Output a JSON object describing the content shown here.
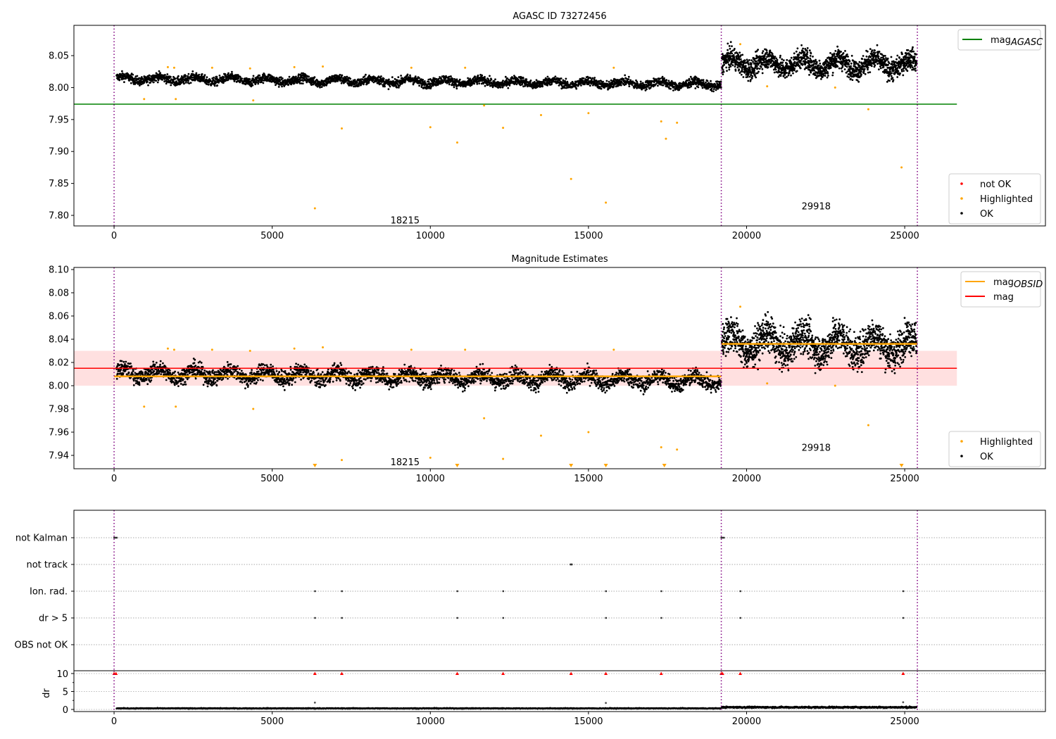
{
  "chart_data": [
    {
      "type": "scatter",
      "title": "AGASC ID 73272456",
      "xlim": [
        -1270,
        29450
      ],
      "ylim": [
        7.7835,
        8.0974
      ],
      "xticks": [
        0,
        5000,
        10000,
        15000,
        20000,
        25000
      ],
      "yticks": [
        7.8,
        7.85,
        7.9,
        7.95,
        8.0,
        8.05
      ],
      "ok_segments": [
        {
          "x": [
            80,
            19200
          ],
          "mean": [
            8.014,
            8.005
          ],
          "spread": 0.011
        },
        {
          "x": [
            19220,
            25380
          ],
          "mean": [
            8.038,
            8.036
          ],
          "spread": 0.026
        }
      ],
      "highlighted": [
        [
          1700,
          8.032
        ],
        [
          1900,
          8.031
        ],
        [
          3100,
          8.031
        ],
        [
          4300,
          8.03
        ],
        [
          5700,
          8.032
        ],
        [
          6600,
          8.033
        ],
        [
          9400,
          8.031
        ],
        [
          11100,
          8.031
        ],
        [
          15800,
          8.031
        ],
        [
          19800,
          8.068
        ],
        [
          950,
          7.982
        ],
        [
          1950,
          7.982
        ],
        [
          4400,
          7.98
        ],
        [
          6350,
          7.811
        ],
        [
          7200,
          7.936
        ],
        [
          10000,
          7.938
        ],
        [
          10850,
          7.914
        ],
        [
          11700,
          7.972
        ],
        [
          12300,
          7.937
        ],
        [
          13500,
          7.957
        ],
        [
          14450,
          7.857
        ],
        [
          15000,
          7.96
        ],
        [
          15550,
          7.82
        ],
        [
          17300,
          7.947
        ],
        [
          17450,
          7.92
        ],
        [
          17800,
          7.945
        ],
        [
          23850,
          7.966
        ],
        [
          24900,
          7.875
        ],
        [
          22800,
          8.0
        ],
        [
          20650,
          8.002
        ]
      ],
      "not_ok": [],
      "mag_agasc": {
        "value": 7.974,
        "x": [
          -1270,
          26650
        ],
        "color": "#008000"
      },
      "obsid_lines": [
        0,
        19200,
        25400
      ],
      "annotations": [
        {
          "text": "18215",
          "x": 9200,
          "y": 7.793
        },
        {
          "text": "29918",
          "x": 22200,
          "y": 7.815
        }
      ],
      "legend_top": [
        {
          "label": "mag",
          "sub": "AGASC",
          "color": "#008000"
        }
      ],
      "legend_bottom": [
        {
          "label": "not OK",
          "color": "#ff0000"
        },
        {
          "label": "Highlighted",
          "color": "#ffa500"
        },
        {
          "label": "OK",
          "color": "#000000"
        }
      ]
    },
    {
      "type": "scatter",
      "title": "Magnitude Estimates",
      "xlim": [
        -1270,
        29450
      ],
      "ylim": [
        7.9285,
        8.1018
      ],
      "xticks": [
        0,
        5000,
        10000,
        15000,
        20000,
        25000
      ],
      "yticks": [
        7.94,
        7.96,
        7.98,
        8.0,
        8.02,
        8.04,
        8.06,
        8.08,
        8.1
      ],
      "ok_segments": [
        {
          "x": [
            80,
            19200
          ],
          "mean": [
            8.011,
            8.004
          ],
          "spread": 0.011
        },
        {
          "x": [
            19220,
            25380
          ],
          "mean": [
            8.037,
            8.035
          ],
          "spread": 0.024
        }
      ],
      "highlighted_below_range_x": [
        6350,
        10850,
        14450,
        15550,
        17400,
        24900
      ],
      "mag": {
        "value": 8.015,
        "band": [
          8.0,
          8.03
        ],
        "x": [
          -1270,
          26650
        ],
        "color": "#ff0000"
      },
      "mag_obsid": [
        {
          "x": [
            0,
            19200
          ],
          "value": 8.008
        },
        {
          "x": [
            19200,
            25400
          ],
          "value": 8.036
        }
      ],
      "annotations": [
        {
          "text": "18215",
          "x": 9200,
          "y": 7.9345
        },
        {
          "text": "29918",
          "x": 22200,
          "y": 7.947
        }
      ],
      "legend_top": [
        {
          "label": "mag",
          "sub": "OBSID",
          "color": "#ffa500"
        },
        {
          "label": "mag",
          "sub": "",
          "color": "#ff0000"
        }
      ],
      "legend_bottom": [
        {
          "label": "Highlighted",
          "color": "#ffa500"
        },
        {
          "label": "OK",
          "color": "#000000"
        }
      ]
    },
    {
      "type": "scatter",
      "title": "",
      "categories": [
        "not Kalman",
        "not track",
        "Ion. rad.",
        "dr > 5",
        "OBS not OK"
      ],
      "flags": {
        "not Kalman": [
          0,
          40,
          80,
          19200,
          19240,
          19280
        ],
        "not track": [
          14430,
          14450,
          14470
        ],
        "Ion. rad.": [
          6350,
          7200,
          10850,
          12300,
          15550,
          17300,
          19800,
          24950
        ],
        "dr > 5": [
          6350,
          7200,
          10850,
          12300,
          15550,
          17300,
          19800,
          24950
        ],
        "OBS not OK": []
      }
    },
    {
      "type": "scatter",
      "ylabel": "dr",
      "xlim": [
        -1270,
        29450
      ],
      "ylim": [
        -0.59,
        10.78
      ],
      "yticks": [
        0,
        5,
        10
      ],
      "xticks": [
        0,
        5000,
        10000,
        15000,
        20000,
        25000
      ],
      "clipped_x": [
        0,
        60,
        6350,
        7200,
        10850,
        12300,
        14450,
        15550,
        17300,
        19200,
        19240,
        19800,
        24950
      ],
      "segments": [
        {
          "x": [
            80,
            19200
          ],
          "mean": 0.3,
          "spread": 0.15
        },
        {
          "x": [
            19220,
            25380
          ],
          "mean": 0.6,
          "spread": 0.3
        }
      ],
      "spikes": [
        [
          6350,
          1.9
        ],
        [
          15550,
          1.8
        ],
        [
          24950,
          2.0
        ]
      ]
    }
  ]
}
